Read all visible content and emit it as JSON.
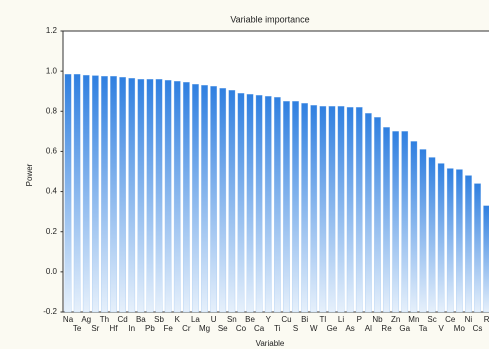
{
  "chart_data": {
    "type": "bar",
    "title": "Variable importance",
    "x_label": "Variable",
    "y_label": "Power",
    "categories": [
      "Na",
      "Te",
      "Ag",
      "Sr",
      "Th",
      "Hf",
      "Cd",
      "In",
      "Ba",
      "Pb",
      "Sb",
      "Fe",
      "K",
      "Cr",
      "La",
      "Mg",
      "U",
      "Se",
      "Sn",
      "Co",
      "Be",
      "Ca",
      "Y",
      "Ti",
      "Cu",
      "S",
      "Bi",
      "W",
      "Tl",
      "Ge",
      "Li",
      "As",
      "P",
      "Al",
      "Nb",
      "Re",
      "Zn",
      "Ga",
      "Mn",
      "Ta",
      "Sc",
      "V",
      "Ce",
      "Mo",
      "Ni",
      "Cs",
      "R"
    ],
    "values": [
      0.985,
      0.985,
      0.98,
      0.978,
      0.975,
      0.975,
      0.97,
      0.965,
      0.96,
      0.96,
      0.96,
      0.955,
      0.95,
      0.945,
      0.935,
      0.93,
      0.925,
      0.915,
      0.905,
      0.89,
      0.885,
      0.88,
      0.875,
      0.87,
      0.85,
      0.85,
      0.84,
      0.83,
      0.825,
      0.825,
      0.825,
      0.82,
      0.82,
      0.79,
      0.77,
      0.72,
      0.7,
      0.7,
      0.65,
      0.61,
      0.57,
      0.54,
      0.515,
      0.51,
      0.48,
      0.44,
      0.33
    ],
    "color": "#2f7fe0",
    "ylim": [
      -0.2,
      1.2
    ],
    "yticks": [
      -0.2,
      {
        "value": 0,
        "label": "0.0"
      },
      0.2,
      0.4,
      0.6,
      0.8,
      {
        "value": 1,
        "label": "1.0"
      },
      1.2
    ]
  }
}
